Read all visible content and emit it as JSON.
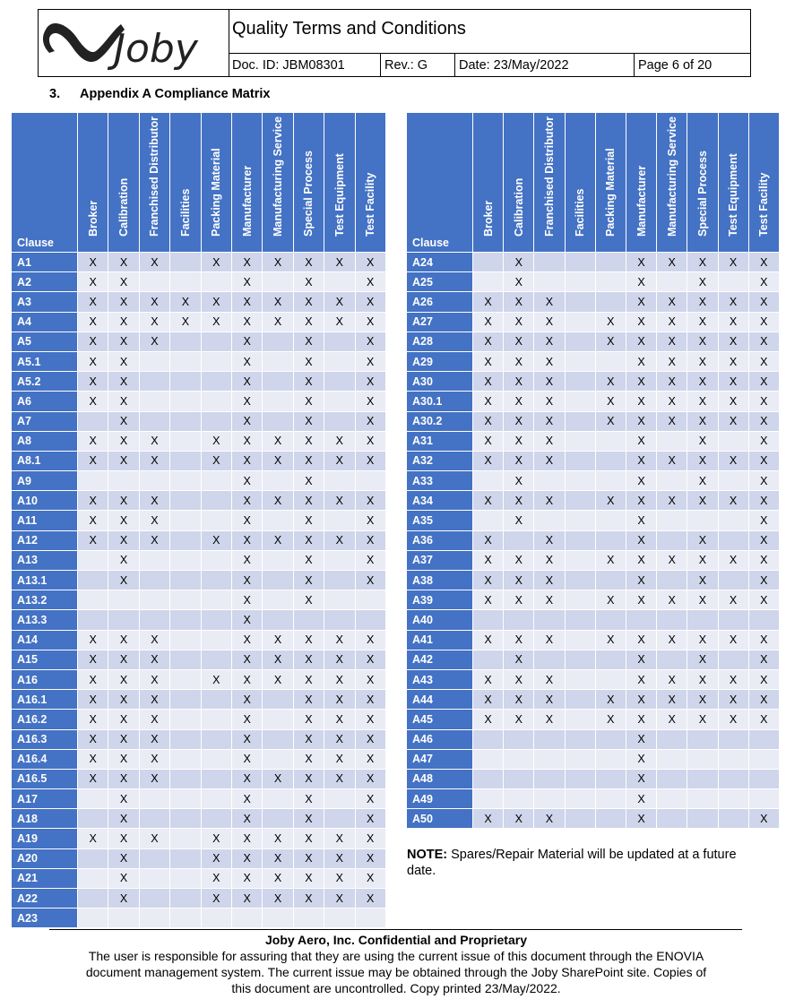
{
  "header": {
    "logo_text": "Joby",
    "title": "Quality Terms and Conditions",
    "doc_id": "Doc. ID: JBM08301",
    "rev": "Rev.: G",
    "date": "Date: 23/May/2022",
    "page": "Page 6 of 20"
  },
  "section": {
    "number": "3.",
    "title": "Appendix A Compliance Matrix"
  },
  "columns": [
    "Clause",
    "Broker",
    "Calibration",
    "Franchised Distributor",
    "Facilities",
    "Packing Material",
    "Manufacturer",
    "Manufacturing Service",
    "Special Process",
    "Test Equipment",
    "Test Facility"
  ],
  "mark": "X",
  "left_rows": [
    {
      "clause": "A1",
      "marks": [
        1,
        1,
        1,
        0,
        1,
        1,
        1,
        1,
        1,
        1
      ]
    },
    {
      "clause": "A2",
      "marks": [
        1,
        1,
        0,
        0,
        0,
        1,
        0,
        1,
        0,
        1
      ]
    },
    {
      "clause": "A3",
      "marks": [
        1,
        1,
        1,
        1,
        1,
        1,
        1,
        1,
        1,
        1
      ]
    },
    {
      "clause": "A4",
      "marks": [
        1,
        1,
        1,
        1,
        1,
        1,
        1,
        1,
        1,
        1
      ]
    },
    {
      "clause": "A5",
      "marks": [
        1,
        1,
        1,
        0,
        0,
        1,
        0,
        1,
        0,
        1
      ]
    },
    {
      "clause": "A5.1",
      "marks": [
        1,
        1,
        0,
        0,
        0,
        1,
        0,
        1,
        0,
        1
      ]
    },
    {
      "clause": "A5.2",
      "marks": [
        1,
        1,
        0,
        0,
        0,
        1,
        0,
        1,
        0,
        1
      ]
    },
    {
      "clause": "A6",
      "marks": [
        1,
        1,
        0,
        0,
        0,
        1,
        0,
        1,
        0,
        1
      ]
    },
    {
      "clause": "A7",
      "marks": [
        0,
        1,
        0,
        0,
        0,
        1,
        0,
        1,
        0,
        1
      ]
    },
    {
      "clause": "A8",
      "marks": [
        1,
        1,
        1,
        0,
        1,
        1,
        1,
        1,
        1,
        1
      ]
    },
    {
      "clause": "A8.1",
      "marks": [
        1,
        1,
        1,
        0,
        1,
        1,
        1,
        1,
        1,
        1
      ]
    },
    {
      "clause": "A9",
      "marks": [
        0,
        0,
        0,
        0,
        0,
        1,
        0,
        1,
        0,
        0
      ]
    },
    {
      "clause": "A10",
      "marks": [
        1,
        1,
        1,
        0,
        0,
        1,
        1,
        1,
        1,
        1
      ]
    },
    {
      "clause": "A11",
      "marks": [
        1,
        1,
        1,
        0,
        0,
        1,
        0,
        1,
        0,
        1
      ]
    },
    {
      "clause": "A12",
      "marks": [
        1,
        1,
        1,
        0,
        1,
        1,
        1,
        1,
        1,
        1
      ]
    },
    {
      "clause": "A13",
      "marks": [
        0,
        1,
        0,
        0,
        0,
        1,
        0,
        1,
        0,
        1
      ]
    },
    {
      "clause": "A13.1",
      "marks": [
        0,
        1,
        0,
        0,
        0,
        1,
        0,
        1,
        0,
        1
      ]
    },
    {
      "clause": "A13.2",
      "marks": [
        0,
        0,
        0,
        0,
        0,
        1,
        0,
        1,
        0,
        0
      ]
    },
    {
      "clause": "A13.3",
      "marks": [
        0,
        0,
        0,
        0,
        0,
        1,
        0,
        0,
        0,
        0
      ]
    },
    {
      "clause": "A14",
      "marks": [
        1,
        1,
        1,
        0,
        0,
        1,
        1,
        1,
        1,
        1
      ]
    },
    {
      "clause": "A15",
      "marks": [
        1,
        1,
        1,
        0,
        0,
        1,
        1,
        1,
        1,
        1
      ]
    },
    {
      "clause": "A16",
      "marks": [
        1,
        1,
        1,
        0,
        1,
        1,
        1,
        1,
        1,
        1
      ]
    },
    {
      "clause": "A16.1",
      "marks": [
        1,
        1,
        1,
        0,
        0,
        1,
        0,
        1,
        1,
        1
      ]
    },
    {
      "clause": "A16.2",
      "marks": [
        1,
        1,
        1,
        0,
        0,
        1,
        0,
        1,
        1,
        1
      ]
    },
    {
      "clause": "A16.3",
      "marks": [
        1,
        1,
        1,
        0,
        0,
        1,
        0,
        1,
        1,
        1
      ]
    },
    {
      "clause": "A16.4",
      "marks": [
        1,
        1,
        1,
        0,
        0,
        1,
        0,
        1,
        1,
        1
      ]
    },
    {
      "clause": "A16.5",
      "marks": [
        1,
        1,
        1,
        0,
        0,
        1,
        1,
        1,
        1,
        1
      ]
    },
    {
      "clause": "A17",
      "marks": [
        0,
        1,
        0,
        0,
        0,
        1,
        0,
        1,
        0,
        1
      ]
    },
    {
      "clause": "A18",
      "marks": [
        0,
        1,
        0,
        0,
        0,
        1,
        0,
        1,
        0,
        1
      ]
    },
    {
      "clause": "A19",
      "marks": [
        1,
        1,
        1,
        0,
        1,
        1,
        1,
        1,
        1,
        1
      ]
    },
    {
      "clause": "A20",
      "marks": [
        0,
        1,
        0,
        0,
        1,
        1,
        1,
        1,
        1,
        1
      ]
    },
    {
      "clause": "A21",
      "marks": [
        0,
        1,
        0,
        0,
        1,
        1,
        1,
        1,
        1,
        1
      ]
    },
    {
      "clause": "A22",
      "marks": [
        0,
        1,
        0,
        0,
        1,
        1,
        1,
        1,
        1,
        1
      ]
    },
    {
      "clause": "A23",
      "marks": [
        0,
        0,
        0,
        0,
        0,
        0,
        0,
        0,
        0,
        0
      ]
    }
  ],
  "right_rows": [
    {
      "clause": "A24",
      "marks": [
        0,
        1,
        0,
        0,
        0,
        1,
        1,
        1,
        1,
        1
      ]
    },
    {
      "clause": "A25",
      "marks": [
        0,
        1,
        0,
        0,
        0,
        1,
        0,
        1,
        0,
        1
      ]
    },
    {
      "clause": "A26",
      "marks": [
        1,
        1,
        1,
        0,
        0,
        1,
        1,
        1,
        1,
        1
      ]
    },
    {
      "clause": "A27",
      "marks": [
        1,
        1,
        1,
        0,
        1,
        1,
        1,
        1,
        1,
        1
      ]
    },
    {
      "clause": "A28",
      "marks": [
        1,
        1,
        1,
        0,
        1,
        1,
        1,
        1,
        1,
        1
      ]
    },
    {
      "clause": "A29",
      "marks": [
        1,
        1,
        1,
        0,
        0,
        1,
        1,
        1,
        1,
        1
      ]
    },
    {
      "clause": "A30",
      "marks": [
        1,
        1,
        1,
        0,
        1,
        1,
        1,
        1,
        1,
        1
      ]
    },
    {
      "clause": "A30.1",
      "marks": [
        1,
        1,
        1,
        0,
        1,
        1,
        1,
        1,
        1,
        1
      ]
    },
    {
      "clause": "A30.2",
      "marks": [
        1,
        1,
        1,
        0,
        1,
        1,
        1,
        1,
        1,
        1
      ]
    },
    {
      "clause": "A31",
      "marks": [
        1,
        1,
        1,
        0,
        0,
        1,
        0,
        1,
        0,
        1
      ]
    },
    {
      "clause": "A32",
      "marks": [
        1,
        1,
        1,
        0,
        0,
        1,
        1,
        1,
        1,
        1
      ]
    },
    {
      "clause": "A33",
      "marks": [
        0,
        1,
        0,
        0,
        0,
        1,
        0,
        1,
        0,
        1
      ]
    },
    {
      "clause": "A34",
      "marks": [
        1,
        1,
        1,
        0,
        1,
        1,
        1,
        1,
        1,
        1
      ]
    },
    {
      "clause": "A35",
      "marks": [
        0,
        1,
        0,
        0,
        0,
        1,
        0,
        0,
        0,
        1
      ]
    },
    {
      "clause": "A36",
      "marks": [
        1,
        0,
        1,
        0,
        0,
        1,
        0,
        1,
        0,
        1
      ]
    },
    {
      "clause": "A37",
      "marks": [
        1,
        1,
        1,
        0,
        1,
        1,
        1,
        1,
        1,
        1
      ]
    },
    {
      "clause": "A38",
      "marks": [
        1,
        1,
        1,
        0,
        0,
        1,
        0,
        1,
        0,
        1
      ]
    },
    {
      "clause": "A39",
      "marks": [
        1,
        1,
        1,
        0,
        1,
        1,
        1,
        1,
        1,
        1
      ]
    },
    {
      "clause": "A40",
      "marks": [
        0,
        0,
        0,
        0,
        0,
        0,
        0,
        0,
        0,
        0
      ]
    },
    {
      "clause": "A41",
      "marks": [
        1,
        1,
        1,
        0,
        1,
        1,
        1,
        1,
        1,
        1
      ]
    },
    {
      "clause": "A42",
      "marks": [
        0,
        1,
        0,
        0,
        0,
        1,
        0,
        1,
        0,
        1
      ]
    },
    {
      "clause": "A43",
      "marks": [
        1,
        1,
        1,
        0,
        0,
        1,
        1,
        1,
        1,
        1
      ]
    },
    {
      "clause": "A44",
      "marks": [
        1,
        1,
        1,
        0,
        1,
        1,
        1,
        1,
        1,
        1
      ]
    },
    {
      "clause": "A45",
      "marks": [
        1,
        1,
        1,
        0,
        1,
        1,
        1,
        1,
        1,
        1
      ]
    },
    {
      "clause": "A46",
      "marks": [
        0,
        0,
        0,
        0,
        0,
        1,
        0,
        0,
        0,
        0
      ]
    },
    {
      "clause": "A47",
      "marks": [
        0,
        0,
        0,
        0,
        0,
        1,
        0,
        0,
        0,
        0
      ]
    },
    {
      "clause": "A48",
      "marks": [
        0,
        0,
        0,
        0,
        0,
        1,
        0,
        0,
        0,
        0
      ]
    },
    {
      "clause": "A49",
      "marks": [
        0,
        0,
        0,
        0,
        0,
        1,
        0,
        0,
        0,
        0
      ]
    },
    {
      "clause": "A50",
      "marks": [
        1,
        1,
        1,
        0,
        0,
        1,
        0,
        0,
        0,
        1
      ]
    }
  ],
  "note": {
    "label": "NOTE:",
    "text": " Spares/Repair Material will be updated at a future date."
  },
  "footer": {
    "confidential": "Joby Aero, Inc. Confidential and Proprietary",
    "line1": "The user is responsible for assuring that they are using the current issue of this document through the ENOVIA",
    "line2": "document management system. The current issue may be obtained through the Joby SharePoint site. Copies of",
    "line3": "this document are uncontrolled. Copy printed  23/May/2022."
  },
  "colors": {
    "header_blue": "#4472c4",
    "band_dark": "#cfd5ea",
    "band_light": "#e9ebf5"
  }
}
